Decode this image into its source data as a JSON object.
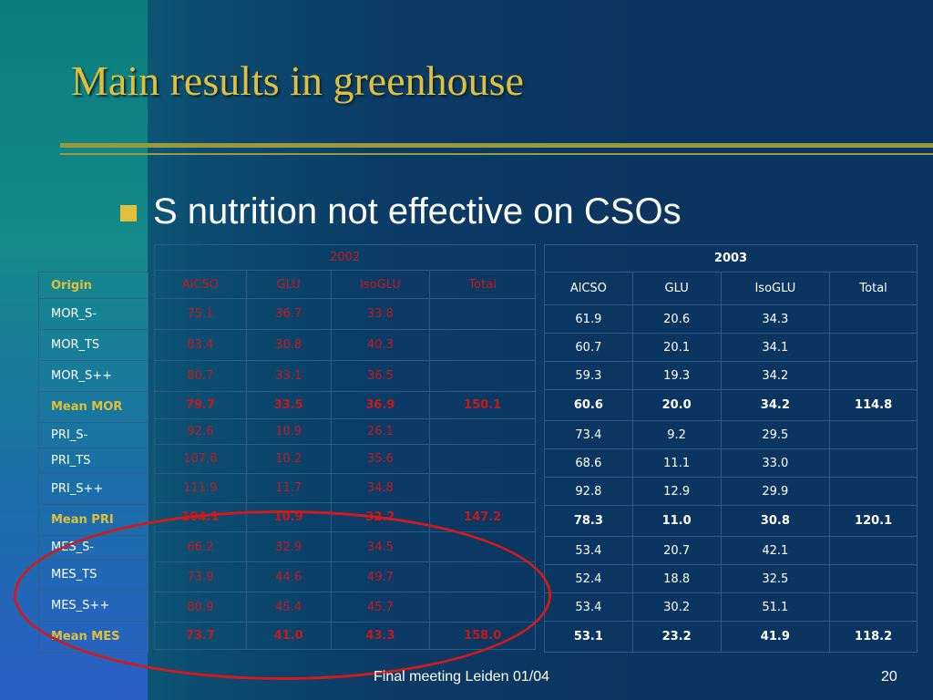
{
  "slide": {
    "title": "Main results in greenhouse",
    "bullet": "S nutrition not effective on CSOs",
    "footer": "Final meeting Leiden 01/04",
    "page_number": "20"
  },
  "origin": {
    "header": "Origin",
    "rows": [
      "MOR_S-",
      "MOR_TS",
      "MOR_S++",
      "Mean MOR",
      "PRI_S-",
      "PRI_TS",
      "PRI_S++",
      "Mean PRI",
      "MES_S-",
      "MES_TS",
      "MES_S++",
      "Mean MES"
    ]
  },
  "table_2002": {
    "year": "2002",
    "headers": [
      "AlCSO",
      "GLU",
      "IsoGLU",
      "Total"
    ],
    "rows": [
      [
        "75.1",
        "36.7",
        "33.8",
        ""
      ],
      [
        "83.4",
        "30.8",
        "40.3",
        ""
      ],
      [
        "80.7",
        "33.1",
        "36.5",
        ""
      ],
      [
        "79.7",
        "33.5",
        "36.9",
        "150.1"
      ],
      [
        "92.6",
        "10.9",
        "26.1",
        ""
      ],
      [
        "107.8",
        "10.2",
        "35.6",
        ""
      ],
      [
        "111.9",
        "11.7",
        "34.8",
        ""
      ],
      [
        "104.1",
        "10.9",
        "32.2",
        "147.2"
      ],
      [
        "66.2",
        "32.9",
        "34.5",
        ""
      ],
      [
        "73.9",
        "44.6",
        "49.7",
        ""
      ],
      [
        "80.9",
        "45.4",
        "45.7",
        ""
      ],
      [
        "73.7",
        "41.0",
        "43.3",
        "158.0"
      ]
    ]
  },
  "table_2003": {
    "year": "2003",
    "headers": [
      "AlCSO",
      "GLU",
      "IsoGLU",
      "Total"
    ],
    "rows": [
      [
        "61.9",
        "20.6",
        "34.3",
        ""
      ],
      [
        "60.7",
        "20.1",
        "34.1",
        ""
      ],
      [
        "59.3",
        "19.3",
        "34.2",
        ""
      ],
      [
        "60.6",
        "20.0",
        "34.2",
        "114.8"
      ],
      [
        "73.4",
        "9.2",
        "29.5",
        ""
      ],
      [
        "68.6",
        "11.1",
        "33.0",
        ""
      ],
      [
        "92.8",
        "12.9",
        "29.9",
        ""
      ],
      [
        "78.3",
        "11.0",
        "30.8",
        "120.1"
      ],
      [
        "53.4",
        "20.7",
        "42.1",
        ""
      ],
      [
        "52.4",
        "18.8",
        "32.5",
        ""
      ],
      [
        "53.4",
        "30.2",
        "51.1",
        ""
      ],
      [
        "53.1",
        "23.2",
        "41.9",
        "118.2"
      ]
    ]
  },
  "colors": {
    "title": "#e0c03a",
    "values_2002": "#c71818",
    "values_2003": "#ffffff",
    "highlight_oval": "#d21a1a"
  }
}
